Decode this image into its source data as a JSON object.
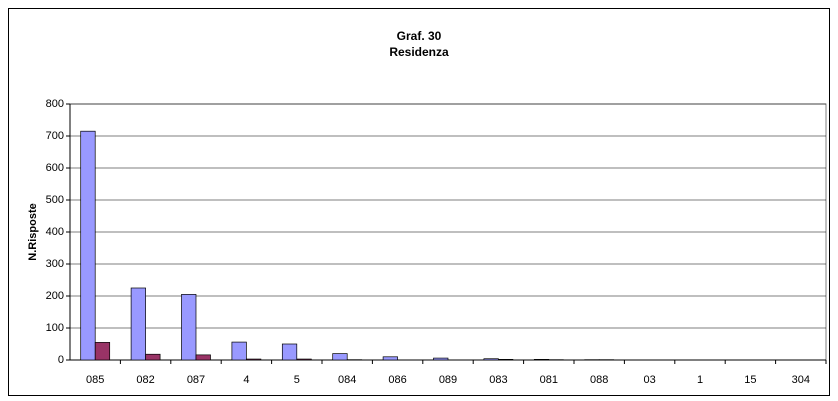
{
  "chart_data": {
    "type": "bar",
    "title": "Graf. 30",
    "subtitle": "Residenza",
    "y_label": "N.Risposte",
    "categories": [
      "085",
      "082",
      "087",
      "4",
      "5",
      "084",
      "086",
      "089",
      "083",
      "081",
      "088",
      "03",
      "1",
      "15",
      "304"
    ],
    "series": [
      {
        "color": "#9999ff",
        "values": [
          715,
          225,
          205,
          56,
          50,
          20,
          10,
          6,
          4,
          2,
          1,
          0,
          0,
          0,
          0
        ]
      },
      {
        "color": "#993366",
        "values": [
          55,
          18,
          16,
          3,
          3,
          1,
          0,
          0,
          2,
          1,
          1,
          0,
          0,
          0,
          0
        ]
      }
    ],
    "ylim": [
      0,
      800
    ],
    "yticks": [
      0,
      100,
      200,
      300,
      400,
      500,
      600,
      700,
      800
    ],
    "grid": true
  }
}
